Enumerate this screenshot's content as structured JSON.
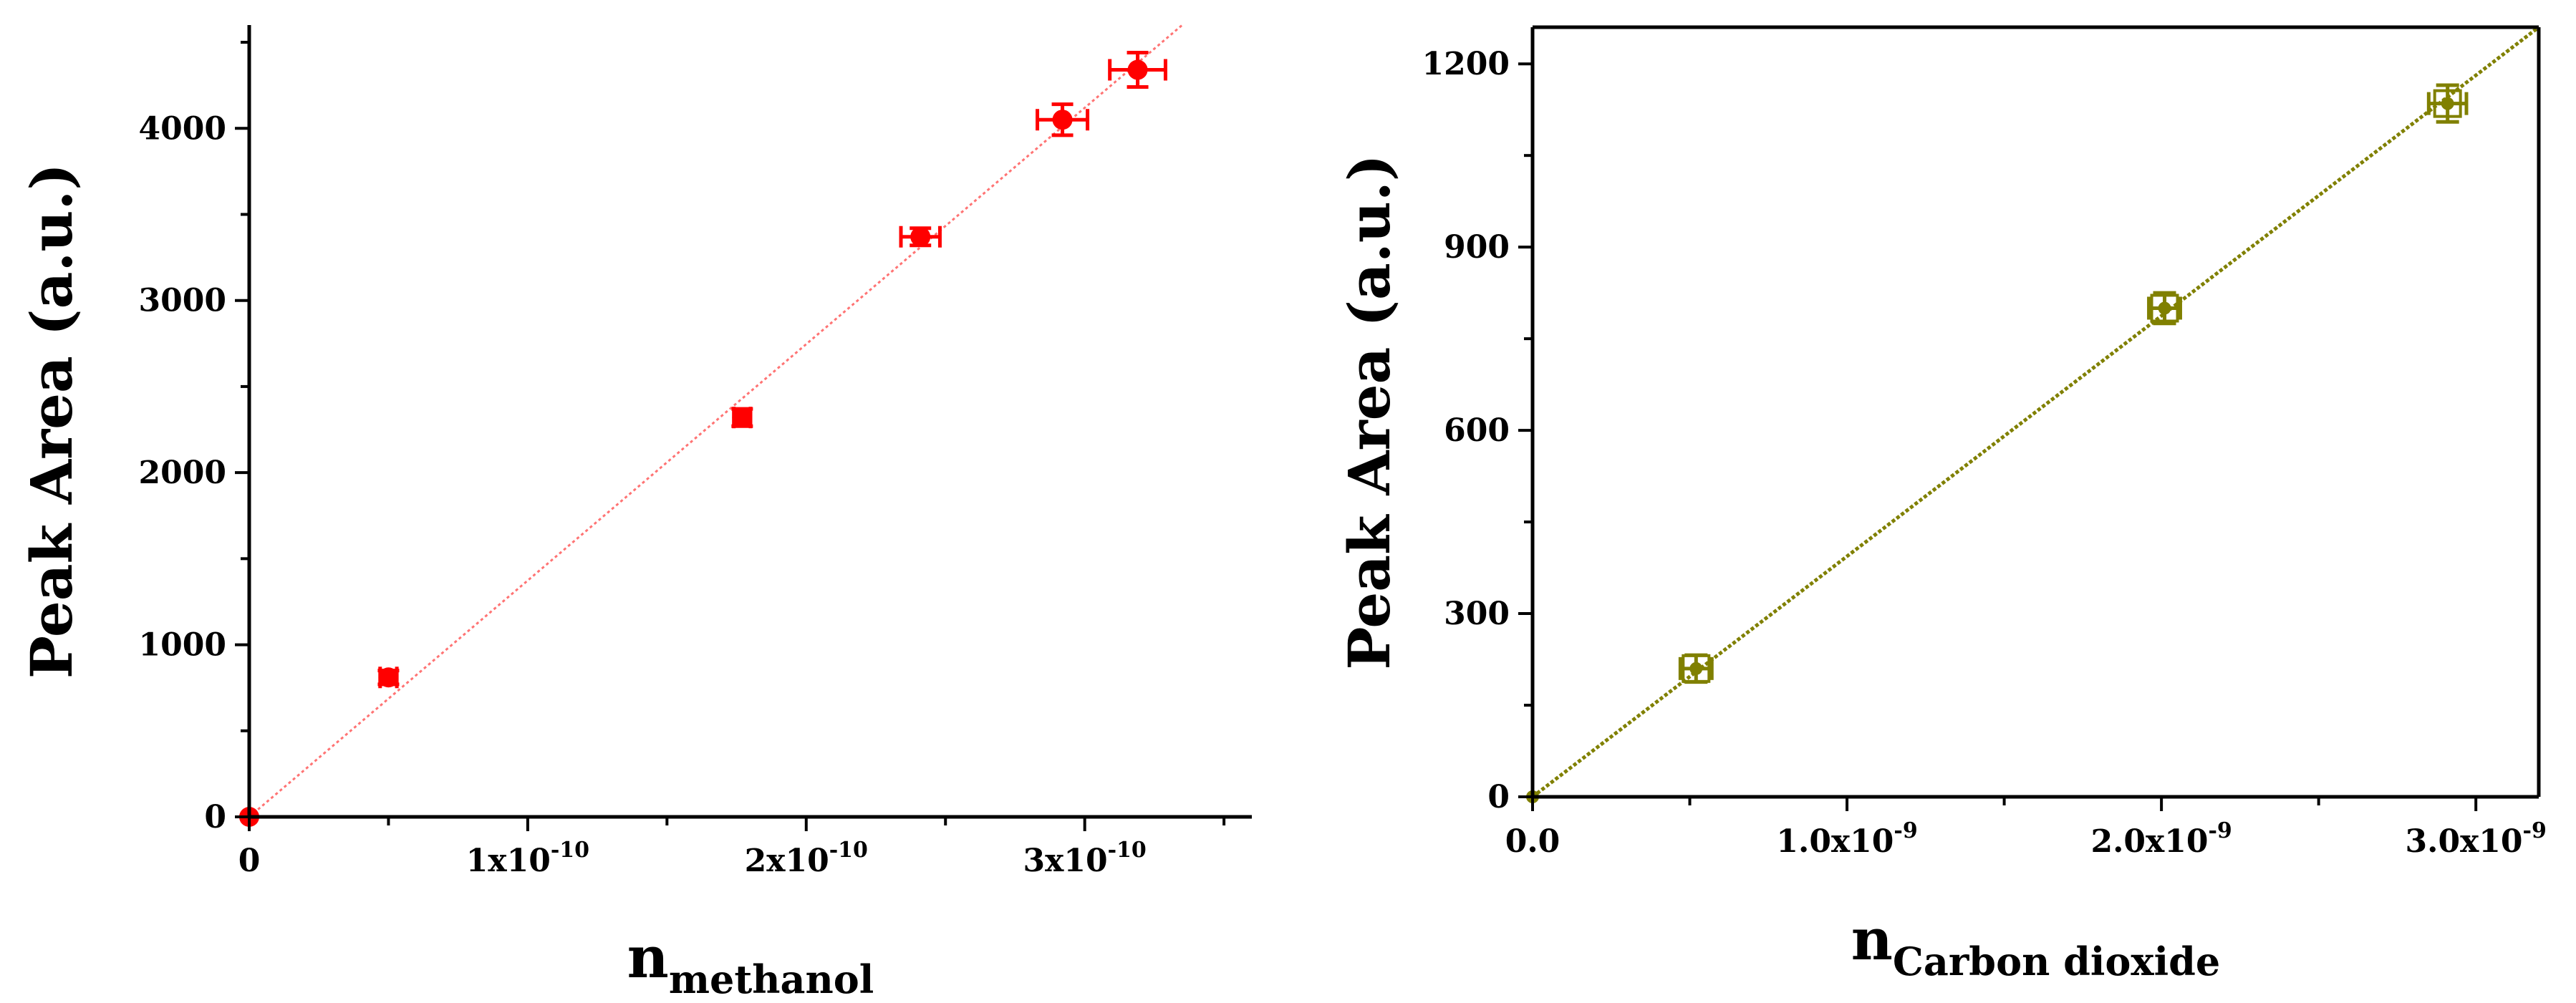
{
  "chart_data": [
    {
      "type": "scatter",
      "xlabel": "n",
      "xlabel_subscript": "methanol",
      "ylabel": "Peak Area (a.u.)",
      "xlim": [
        0,
        3.6e-10
      ],
      "ylim": [
        0,
        4600
      ],
      "x_ticks": [
        0,
        1e-10,
        2e-10,
        3e-10
      ],
      "x_tick_labels": [
        {
          "base": "0",
          "exp": ""
        },
        {
          "base": "1x10",
          "exp": "-10"
        },
        {
          "base": "2x10",
          "exp": "-10"
        },
        {
          "base": "3x10",
          "exp": "-10"
        }
      ],
      "y_ticks": [
        0,
        1000,
        2000,
        3000,
        4000
      ],
      "y_tick_labels": [
        "0",
        "1000",
        "2000",
        "3000",
        "4000"
      ],
      "color": "#ff0000",
      "marker": "filled-circle",
      "fit_line": {
        "style": "dotted",
        "x": [
          0,
          3.35e-10
        ],
        "y": [
          0,
          4600
        ]
      },
      "series": [
        {
          "name": "methanol",
          "x": [
            0,
            5e-11,
            1.77e-10,
            2.41e-10,
            2.92e-10,
            3.19e-10
          ],
          "y": [
            0,
            810,
            2320,
            3370,
            4050,
            4340
          ],
          "x_err": [
            0,
            3e-12,
            3e-12,
            7e-12,
            9e-12,
            1e-11
          ],
          "y_err": [
            0,
            40,
            50,
            50,
            90,
            100
          ]
        }
      ]
    },
    {
      "type": "scatter",
      "xlabel": "n",
      "xlabel_subscript": "Carbon dioxide",
      "ylabel": "Peak Area (a.u.)",
      "xlim": [
        0,
        3.2e-09
      ],
      "ylim": [
        0,
        1260
      ],
      "x_ticks": [
        0,
        1e-09,
        2e-09,
        3e-09
      ],
      "x_tick_labels": [
        {
          "base": "0.0",
          "exp": ""
        },
        {
          "base": "1.0x10",
          "exp": "-9"
        },
        {
          "base": "2.0x10",
          "exp": "-9"
        },
        {
          "base": "3.0x10",
          "exp": "-9"
        }
      ],
      "y_ticks": [
        0,
        300,
        600,
        900,
        1200
      ],
      "y_tick_labels": [
        "0",
        "300",
        "600",
        "900",
        "1200"
      ],
      "color": "#808000",
      "marker": "open-square-with-dot",
      "fit_line": {
        "style": "dashed",
        "x": [
          0,
          3.2e-09
        ],
        "y": [
          0,
          1260
        ]
      },
      "series": [
        {
          "name": "carbon dioxide",
          "x": [
            0,
            5.2e-10,
            2.01e-09,
            2.91e-09
          ],
          "y": [
            0,
            210,
            800,
            1135
          ],
          "x_err": [
            0,
            5e-11,
            5e-11,
            6e-11
          ],
          "y_err": [
            0,
            22,
            25,
            30
          ]
        }
      ]
    }
  ]
}
